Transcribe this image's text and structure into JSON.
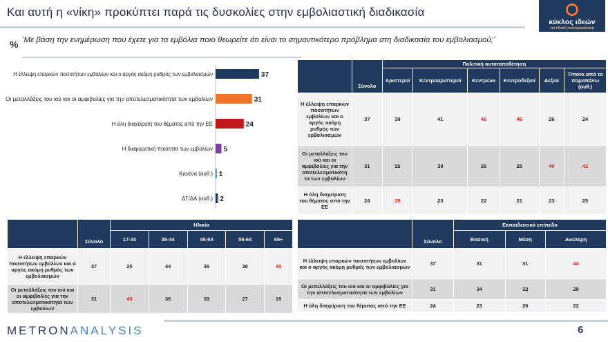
{
  "header": {
    "title": "Και αυτή η «νίκη» προκύπτει παρά τις δυσκολίες στην εμβολιαστική διαδικασία",
    "logo_name": "κύκλος ιδεών",
    "logo_sub": "για εθνική ανασυγκρότηση"
  },
  "question": {
    "symbol": "%",
    "text": "‘Με βάση την ενημέρωση που έχετε για τα εμβόλια ποιο θεωρείτε ότι είναι το σημαντικότερο πρόβλημα στη διαδικασία του εμβολιασμού;’"
  },
  "chart_data": {
    "type": "bar",
    "orientation": "horizontal",
    "categories": [
      "Η έλλειψη επαρκών ποσοτήτων εμβολίων και ο αργός ακόμη ρυθμός των εμβολιασμών",
      "Οι μεταλλάξεις του ιού και οι αμφιβολίες για την αποτελεσματικότητα των εμβολίων",
      "Η όλη διαχείριση του θέματος από την ΕΕ",
      "Η διαφορετική ποιότητα των εμβολίων",
      "Κανένα (αυθ.)",
      "ΔΓ/ΔΑ (αυθ.)"
    ],
    "values": [
      37,
      31,
      24,
      5,
      1,
      2
    ],
    "colors": [
      "#1f3a5c",
      "#f0732a",
      "#c0181b",
      "#7b3fa0",
      "#2e75b6",
      "#1f3a5c"
    ],
    "xlim": [
      0,
      40
    ]
  },
  "table_political": {
    "group_header": "Πολιτική αυτοτοποθέτηση",
    "total_label": "Σύνολο",
    "columns": [
      "Αριστεροί",
      "Κεντροαριστεροί",
      "Κεντρώοι",
      "Κεντροδεξιοί",
      "Δεξιοί",
      "Τίποτα από τα παραπάνω (αυθ.)"
    ],
    "rows": [
      {
        "label": "Η έλλειψη επαρκών ποσοτήτων εμβολίων και ο αργός ακόμη ρυθμός των εμβολιασμών",
        "total": "37",
        "values": [
          "39",
          "41",
          "46",
          "46",
          "26",
          "24"
        ]
      },
      {
        "label": "Οι μεταλλάξεις του ιού και οι αμφιβολίες για την αποτελεσματικότη τα των εμβολίων",
        "total": "31",
        "values": [
          "25",
          "30",
          "26",
          "25",
          "40",
          "42"
        ]
      },
      {
        "label": "Η όλη διαχείριση του θέματος από την ΕΕ",
        "total": "24",
        "values": [
          "28",
          "23",
          "22",
          "21",
          "23",
          "25"
        ]
      }
    ]
  },
  "table_age": {
    "group_header": "Ηλικία",
    "total_label": "Σύνολο",
    "columns": [
      "17-34",
      "35-44",
      "45-54",
      "55-64",
      "65+"
    ],
    "rows": [
      {
        "label": "Η έλλειψη επαρκών ποσοτήτων εμβολίων και ο αργός ακόμη ρυθμός των εμβολιασμών",
        "total": "37",
        "values": [
          "25",
          "44",
          "36",
          "38",
          "45"
        ]
      },
      {
        "label": "Οι μεταλλάξεις του ιού και οι αμφιβολίες για την αποτελεσματικότητα των εμβολίων",
        "total": "31",
        "values": [
          "43",
          "36",
          "33",
          "27",
          "19"
        ]
      }
    ]
  },
  "table_education": {
    "group_header": "Εκπαιδευτικό επίπεδο",
    "total_label": "Σύνολο",
    "columns": [
      "Βασική",
      "Μέση",
      "Ανώτερη"
    ],
    "rows": [
      {
        "label": "Η έλλειψη επαρκών ποσοτήτων εμβολίων και ο αργός ακόμη ρυθμός των εμβολιασμών",
        "total": "37",
        "values": [
          "31",
          "31",
          "44"
        ]
      },
      {
        "label": "Οι μεταλλάξεις του ιού και οι αμφιβολίες για την αποτελεσματικότητα των εμβολίων",
        "total": "31",
        "values": [
          "34",
          "32",
          "29"
        ]
      },
      {
        "label": "Η όλη διαχείριση του θέματος από την ΕΕ",
        "total": "24",
        "values": [
          "23",
          "26",
          "22"
        ]
      }
    ]
  },
  "footer": {
    "brand_a": "METRON",
    "brand_b": "ANALYSIS",
    "page": "6"
  }
}
